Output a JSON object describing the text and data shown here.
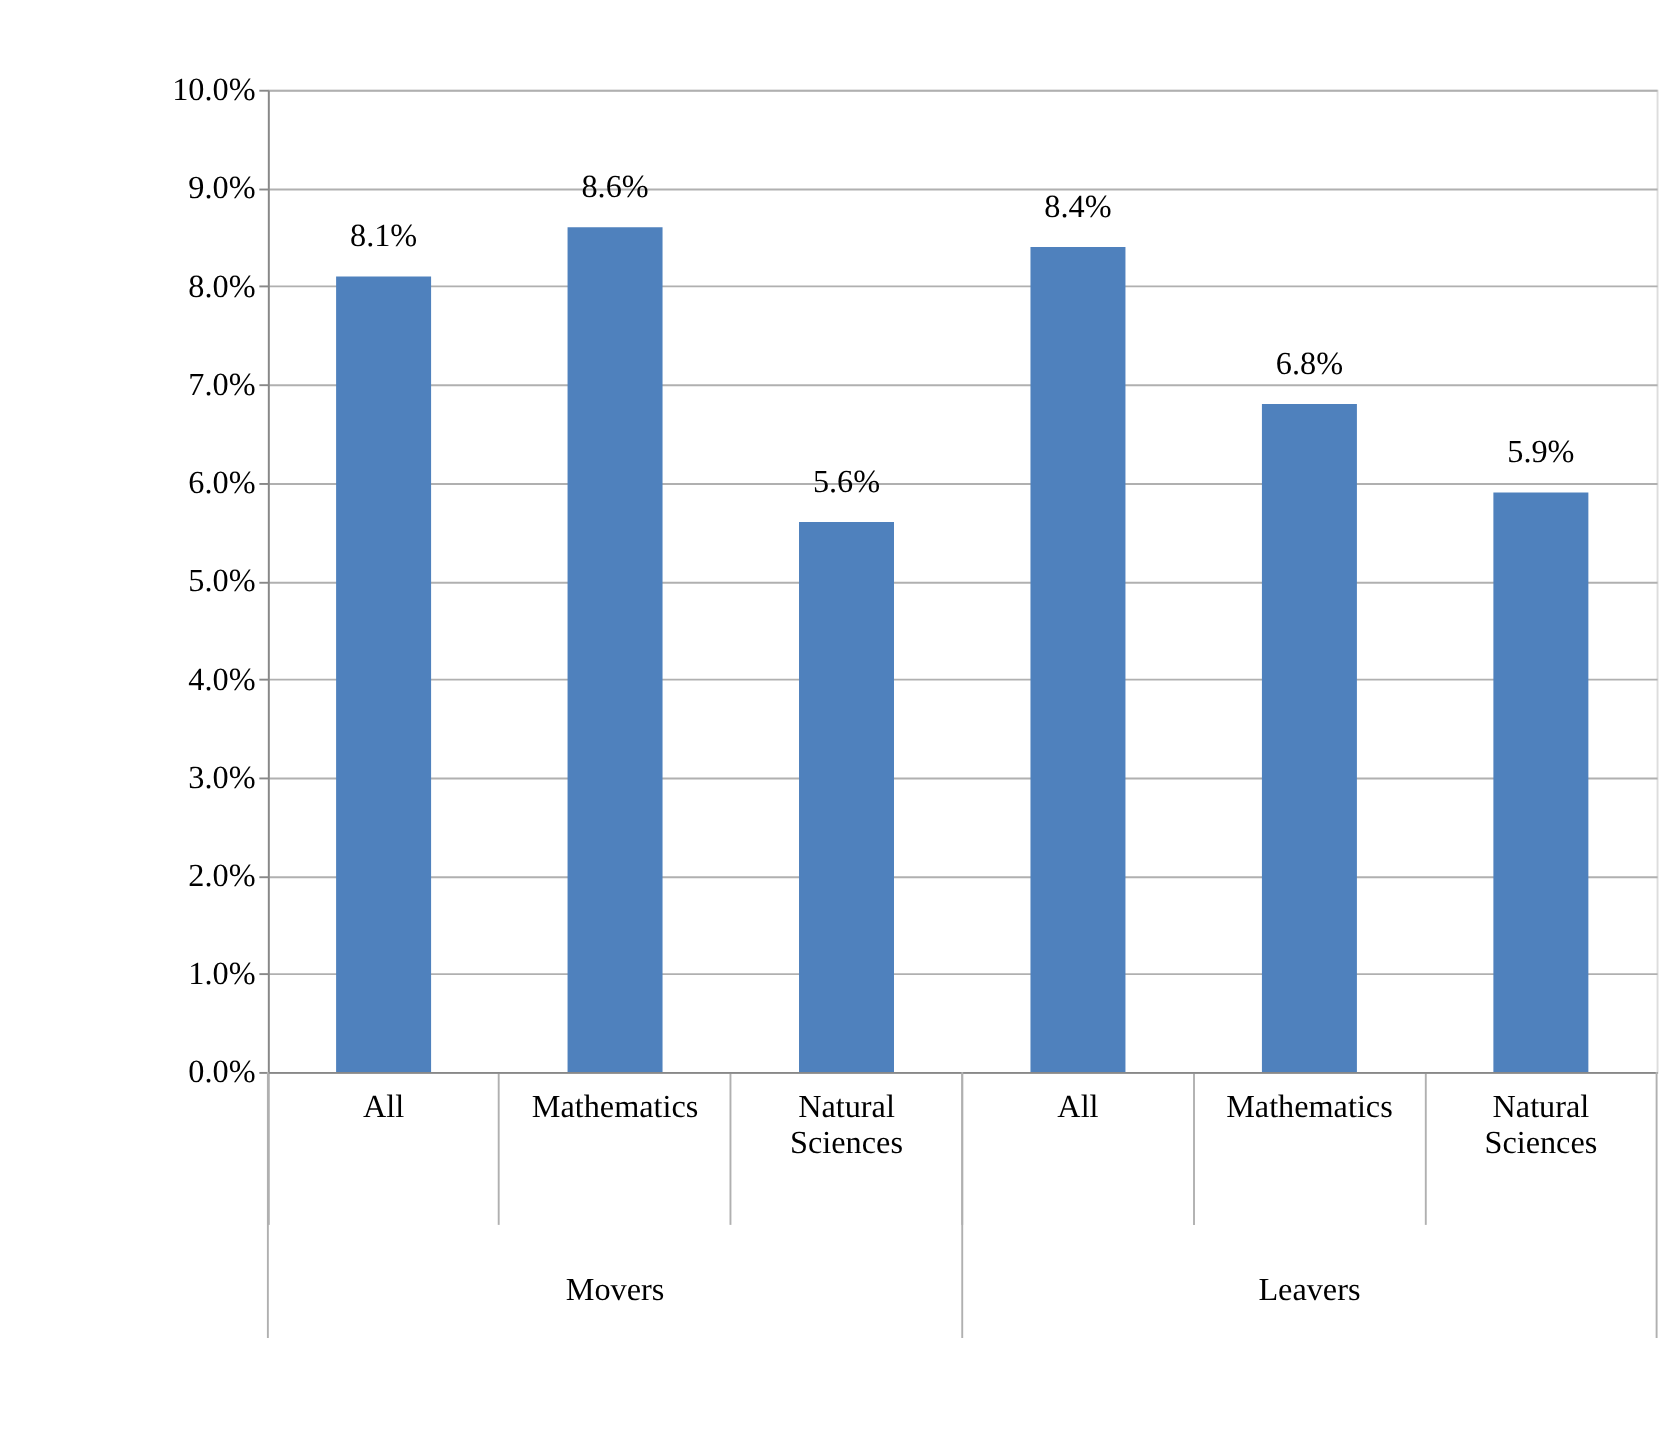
{
  "chart_data": {
    "type": "bar",
    "categories": [
      "All",
      "Mathematics",
      "Natural Sciences",
      "All",
      "Mathematics",
      "Natural Sciences"
    ],
    "values": [
      8.1,
      8.6,
      5.6,
      8.4,
      6.8,
      5.9
    ],
    "value_labels": [
      "8.1%",
      "8.6%",
      "5.6%",
      "8.4%",
      "6.8%",
      "5.9%"
    ],
    "color": "#4f81bd",
    "ylim": [
      0,
      10
    ],
    "yticks": [
      {
        "value": 0,
        "label": "0.0%"
      },
      {
        "value": 1,
        "label": "1.0%"
      },
      {
        "value": 2,
        "label": "2.0%"
      },
      {
        "value": 3,
        "label": "3.0%"
      },
      {
        "value": 4,
        "label": "4.0%"
      },
      {
        "value": 5,
        "label": "5.0%"
      },
      {
        "value": 6,
        "label": "6.0%"
      },
      {
        "value": 7,
        "label": "7.0%"
      },
      {
        "value": 8,
        "label": "8.0%"
      },
      {
        "value": 9,
        "label": "9.0%"
      },
      {
        "value": 10,
        "label": "10.0%"
      }
    ],
    "annotations": [
      "Movers",
      "Leavers"
    ],
    "grid": "y"
  }
}
